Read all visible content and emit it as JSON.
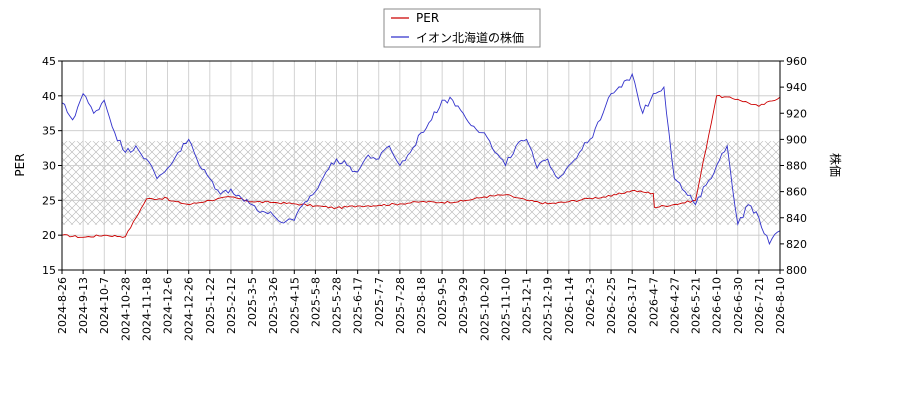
{
  "chart_data": {
    "type": "line",
    "title": "",
    "xlabel": "",
    "ylabel_left": "PER",
    "ylabel_right": "株価",
    "ylim_left": [
      15,
      45
    ],
    "ylim_right": [
      800,
      960
    ],
    "yticks_left": [
      15,
      20,
      25,
      30,
      35,
      40,
      45
    ],
    "yticks_right": [
      800,
      820,
      840,
      860,
      880,
      900,
      920,
      940,
      960
    ],
    "x_ticks": [
      "2024-8-26",
      "2024-9-13",
      "2024-10-7",
      "2024-10-28",
      "2024-11-18",
      "2024-12-6",
      "2024-12-26",
      "2025-1-22",
      "2025-2-12",
      "2025-3-5",
      "2025-3-26",
      "2025-4-15",
      "2025-5-8",
      "2025-5-28",
      "2025-6-17",
      "2025-7-7",
      "2025-7-28",
      "2025-8-18",
      "2025-9-5",
      "2025-9-29",
      "2025-10-20",
      "2025-11-10",
      "2025-12-1",
      "2025-12-19",
      "2026-1-14",
      "2026-2-3",
      "2026-2-25",
      "2026-3-17",
      "2026-4-7",
      "2026-4-27",
      "2026-5-21",
      "2026-6-10",
      "2026-6-30",
      "2026-7-21",
      "2026-8-10"
    ],
    "grid": true,
    "band_left": [
      21.5,
      33.5
    ],
    "legend": {
      "placement": "top-center",
      "entries": [
        {
          "name": "PER",
          "color": "#cc0000"
        },
        {
          "name": "イオン北海道の株価",
          "color": "#3333cc"
        }
      ]
    },
    "series": [
      {
        "name": "PER",
        "axis": "left",
        "color": "#cc0000",
        "x": [
          0,
          1,
          2,
          3,
          4,
          5,
          5.05,
          6,
          7,
          8,
          9,
          10,
          11,
          12,
          13,
          14,
          15,
          16,
          17,
          18,
          19,
          20,
          21,
          22,
          23,
          24,
          25,
          26,
          27,
          28,
          28.05,
          29,
          30,
          31,
          32,
          33,
          34,
          35
        ],
        "values": [
          20.0,
          19.7,
          20.0,
          19.8,
          25.2,
          25.3,
          25.0,
          24.4,
          25.0,
          25.5,
          24.8,
          24.7,
          24.5,
          24.2,
          23.9,
          24.2,
          24.3,
          24.5,
          24.8,
          24.7,
          24.9,
          25.5,
          25.8,
          25.0,
          24.5,
          24.8,
          25.3,
          25.6,
          26.4,
          26.0,
          24.0,
          24.4,
          25.0,
          40.0,
          39.5,
          38.5,
          39.8,
          39.5
        ]
      },
      {
        "name": "イオン北海道の株価",
        "axis": "right",
        "color": "#3333cc",
        "x": [
          0,
          0.5,
          1,
          1.5,
          2,
          2.5,
          3,
          3.5,
          4,
          4.5,
          5,
          5.5,
          6,
          6.5,
          7,
          7.5,
          8,
          8.5,
          9,
          9.5,
          10,
          10.5,
          11,
          11.5,
          12,
          12.5,
          13,
          13.5,
          14,
          14.5,
          15,
          15.5,
          16,
          16.5,
          17,
          17.5,
          18,
          18.5,
          19,
          19.5,
          20,
          20.5,
          21,
          21.5,
          22,
          22.5,
          23,
          23.5,
          24,
          24.5,
          25,
          25.5,
          26,
          26.5,
          27,
          27.5,
          28,
          28.5,
          29,
          29.5,
          30,
          30.5,
          31,
          31.5,
          32,
          32.5,
          33,
          33.5,
          34,
          34.5,
          35
        ],
        "values": [
          928,
          915,
          935,
          920,
          930,
          905,
          890,
          895,
          885,
          870,
          878,
          890,
          900,
          880,
          870,
          858,
          862,
          855,
          850,
          845,
          842,
          836,
          838,
          852,
          860,
          875,
          885,
          880,
          875,
          888,
          885,
          895,
          880,
          890,
          905,
          915,
          930,
          930,
          920,
          910,
          905,
          890,
          880,
          895,
          900,
          878,
          885,
          870,
          880,
          890,
          900,
          915,
          935,
          940,
          950,
          920,
          935,
          940,
          870,
          860,
          850,
          865,
          880,
          895,
          835,
          850,
          840,
          820,
          830,
          845,
          855
        ]
      }
    ]
  }
}
